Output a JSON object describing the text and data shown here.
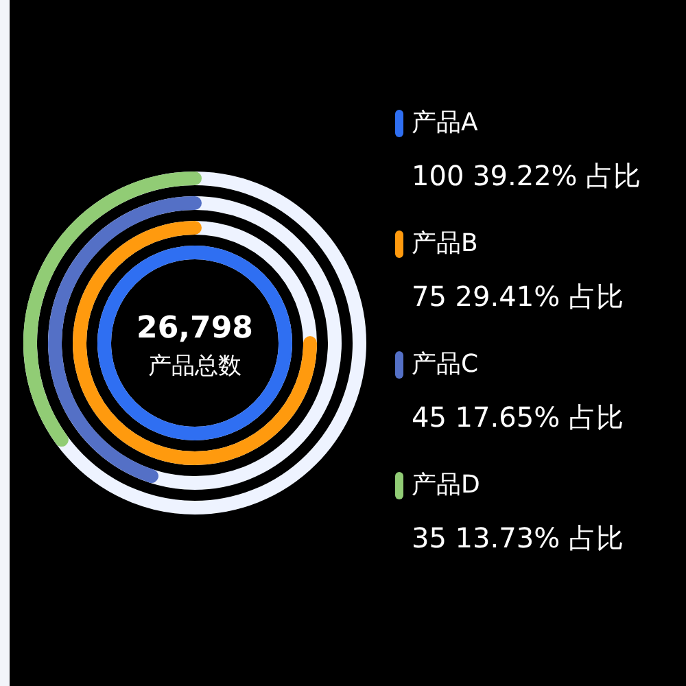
{
  "chart_data": {
    "type": "other",
    "categories": [
      "产品A",
      "产品B",
      "产品C",
      "产品D"
    ],
    "values": [
      100,
      75,
      45,
      35
    ],
    "value_labels": [
      "100 39.22% 占比",
      "75 29.41% 占比",
      "45 17.65% 占比",
      "35 13.73% 占比"
    ],
    "colors": [
      "#2f6ff2",
      "#ff9a0e",
      "#5470c6",
      "#91cc75"
    ],
    "annotations": [
      "26,798",
      "产品总数"
    ]
  }
}
